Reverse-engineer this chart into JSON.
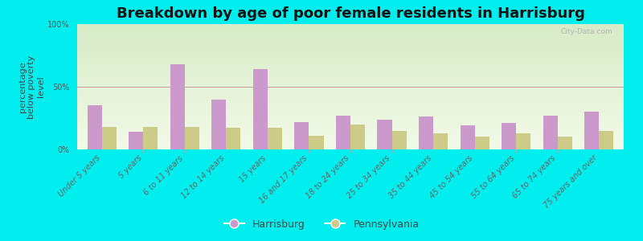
{
  "title": "Breakdown by age of poor female residents in Harrisburg",
  "ylabel": "percentage\nbelow poverty\nlevel",
  "categories": [
    "Under 5 years",
    "5 years",
    "6 to 11 years",
    "12 to 14 years",
    "15 years",
    "16 and 17 years",
    "18 to 24 years",
    "25 to 34 years",
    "35 to 44 years",
    "45 to 54 years",
    "55 to 64 years",
    "65 to 74 years",
    "75 years and over"
  ],
  "harrisburg_values": [
    35,
    14,
    68,
    40,
    64,
    22,
    27,
    24,
    26,
    19,
    21,
    27,
    30
  ],
  "pennsylvania_values": [
    18,
    18,
    18,
    17,
    17,
    11,
    20,
    15,
    13,
    10,
    13,
    10,
    15
  ],
  "harrisburg_color": "#cc99cc",
  "pennsylvania_color": "#cccc88",
  "background_color": "#00eeee",
  "plot_bg_top": "#d8ecc8",
  "plot_bg_bottom": "#f2fae8",
  "ylim": [
    0,
    100
  ],
  "yticks": [
    0,
    50,
    100
  ],
  "ytick_labels": [
    "0%",
    "50%",
    "100%"
  ],
  "bar_width": 0.35,
  "title_fontsize": 13,
  "ylabel_fontsize": 8,
  "tick_fontsize": 7,
  "legend_harrisburg": "Harrisburg",
  "legend_pennsylvania": "Pennsylvania",
  "watermark": "City-Data.com"
}
